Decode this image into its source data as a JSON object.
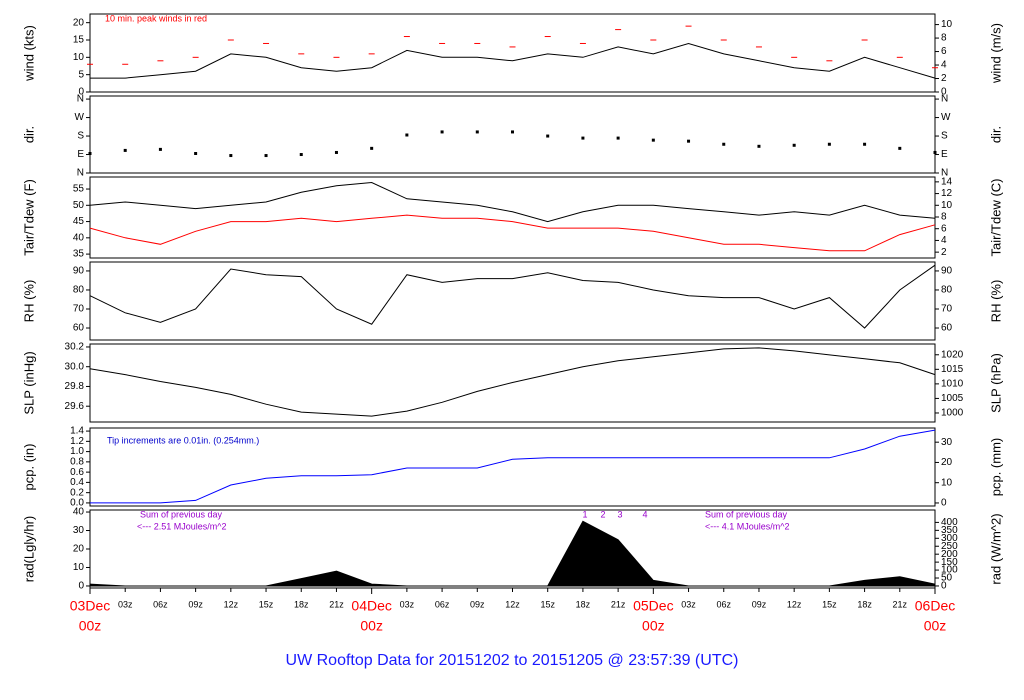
{
  "page_title": "UW Rooftop Data for 20151202  to  20151205 @ 23:57:39  (UTC)",
  "chart_data": [
    {
      "type": "line",
      "ylabel": "wind (kts)",
      "y2label": "wind (m/s)",
      "annotations": [
        "10 min. peak winds in red"
      ],
      "x": [
        0,
        3,
        6,
        9,
        12,
        15,
        18,
        21,
        24,
        27,
        30,
        33,
        36,
        39,
        42,
        45,
        48,
        51,
        54,
        57,
        60,
        63,
        66,
        69,
        72
      ],
      "ylim": [
        0,
        22.5
      ],
      "yticks": [
        0,
        5,
        10,
        15,
        20
      ],
      "y2lim": [
        0,
        11.57
      ],
      "y2ticks": [
        0,
        2,
        4,
        6,
        8,
        10
      ],
      "series": [
        {
          "color": "#000000",
          "values": [
            4,
            4,
            5,
            6,
            11,
            10,
            7,
            6,
            7,
            12,
            10,
            10,
            9,
            11,
            10,
            13,
            11,
            14,
            11,
            9,
            7,
            6,
            10,
            7,
            4
          ]
        },
        {
          "color": "#ff0000",
          "marker": "dash",
          "values": [
            8,
            8,
            9,
            10,
            15,
            14,
            11,
            10,
            11,
            16,
            14,
            14,
            13,
            16,
            14,
            18,
            15,
            19,
            15,
            13,
            10,
            9,
            15,
            10,
            7
          ]
        }
      ]
    },
    {
      "type": "line",
      "ylabel": "dir.",
      "y2label": "dir.",
      "x": [
        0,
        3,
        6,
        9,
        12,
        15,
        18,
        21,
        24,
        27,
        30,
        33,
        36,
        39,
        42,
        45,
        48,
        51,
        54,
        57,
        60,
        63,
        66,
        69,
        72
      ],
      "ylim": [
        0,
        375
      ],
      "yticks": [
        {
          "value": 0,
          "label": "N"
        },
        {
          "value": 90,
          "label": "E"
        },
        {
          "value": 180,
          "label": "S"
        },
        {
          "value": 270,
          "label": "W"
        },
        {
          "value": 360,
          "label": "N"
        }
      ],
      "y2lim": [
        0,
        375
      ],
      "y2ticks": [
        {
          "value": 0,
          "label": "N"
        },
        {
          "value": 90,
          "label": "E"
        },
        {
          "value": 180,
          "label": "S"
        },
        {
          "value": 270,
          "label": "W"
        },
        {
          "value": 360,
          "label": "N"
        }
      ],
      "series": [
        {
          "color": "#000000",
          "marker": "dots",
          "values": [
            95,
            110,
            115,
            95,
            85,
            85,
            90,
            100,
            120,
            185,
            200,
            200,
            200,
            180,
            170,
            170,
            160,
            155,
            140,
            130,
            135,
            140,
            140,
            120,
            100
          ]
        }
      ]
    },
    {
      "type": "line",
      "ylabel": "Tair/Tdew (F)",
      "y2label": "Tair/Tdew (C)",
      "x": [
        0,
        3,
        6,
        9,
        12,
        15,
        18,
        21,
        24,
        27,
        30,
        33,
        36,
        39,
        42,
        45,
        48,
        51,
        54,
        57,
        60,
        63,
        66,
        69,
        72
      ],
      "ylim": [
        33.8,
        58.7
      ],
      "yticks": [
        35,
        40,
        45,
        50,
        55
      ],
      "y2lim": [
        1.0,
        14.83
      ],
      "y2ticks": [
        2,
        4,
        6,
        8,
        10,
        12,
        14
      ],
      "series": [
        {
          "color": "#000000",
          "values": [
            50,
            51,
            50,
            49,
            50,
            51,
            54,
            56,
            57,
            52,
            51,
            50,
            48,
            45,
            48,
            50,
            50,
            49,
            48,
            47,
            48,
            47,
            50,
            47,
            46
          ]
        },
        {
          "color": "#ff0000",
          "values": [
            43,
            40,
            38,
            42,
            45,
            45,
            46,
            45,
            46,
            47,
            46,
            46,
            45,
            43,
            43,
            43,
            42,
            40,
            38,
            38,
            37,
            36,
            36,
            41,
            44
          ]
        }
      ]
    },
    {
      "type": "line",
      "ylabel": "RH (%)",
      "y2label": "RH (%)",
      "x": [
        0,
        3,
        6,
        9,
        12,
        15,
        18,
        21,
        24,
        27,
        30,
        33,
        36,
        39,
        42,
        45,
        48,
        51,
        54,
        57,
        60,
        63,
        66,
        69,
        72
      ],
      "ylim": [
        53.7,
        94.7
      ],
      "yticks": [
        60,
        70,
        80,
        90
      ],
      "y2lim": [
        53.7,
        94.7
      ],
      "y2ticks": [
        60,
        70,
        80,
        90
      ],
      "series": [
        {
          "color": "#000000",
          "values": [
            77,
            68,
            63,
            70,
            91,
            88,
            87,
            70,
            62,
            88,
            84,
            86,
            86,
            89,
            85,
            84,
            80,
            77,
            76,
            76,
            70,
            76,
            60,
            80,
            93
          ]
        }
      ]
    },
    {
      "type": "line",
      "ylabel": "SLP (inHg)",
      "y2label": "SLP (hPa)",
      "x": [
        0,
        3,
        6,
        9,
        12,
        15,
        18,
        21,
        24,
        27,
        30,
        33,
        36,
        39,
        42,
        45,
        48,
        51,
        54,
        57,
        60,
        63,
        66,
        69,
        72
      ],
      "ylim": [
        29.44,
        30.23
      ],
      "yticks": [
        29.6,
        29.8,
        {
          "value": 30,
          "label": "30.0"
        },
        30.2
      ],
      "y2lim": [
        996.9,
        1023.7
      ],
      "y2ticks": [
        1000,
        1005,
        1010,
        1015,
        1020
      ],
      "series": [
        {
          "color": "#000000",
          "values": [
            29.98,
            29.92,
            29.85,
            29.79,
            29.72,
            29.62,
            29.54,
            29.52,
            29.5,
            29.55,
            29.64,
            29.75,
            29.84,
            29.92,
            30,
            30.06,
            30.1,
            30.14,
            30.18,
            30.19,
            30.16,
            30.12,
            30.08,
            30.04,
            29.92
          ]
        }
      ]
    },
    {
      "type": "line",
      "ylabel": "pcp. (in)",
      "y2label": "pcp. (mm)",
      "annotations": [
        "Tip increments are 0.01in. (0.254mm.)"
      ],
      "x": [
        0,
        3,
        6,
        9,
        12,
        15,
        18,
        21,
        24,
        27,
        30,
        33,
        36,
        39,
        42,
        45,
        48,
        51,
        54,
        57,
        60,
        63,
        66,
        69,
        72
      ],
      "ylim": [
        -0.06,
        1.46
      ],
      "yticks": [
        {
          "value": 0,
          "label": "0.0"
        },
        0.2,
        0.4,
        0.6,
        0.8,
        {
          "value": 1,
          "label": "1.0"
        },
        1.2,
        1.4
      ],
      "y2lim": [
        -1.5,
        37.0
      ],
      "y2ticks": [
        0,
        10,
        20,
        30
      ],
      "series": [
        {
          "color": "#0000ff",
          "values": [
            0,
            0,
            0,
            0.05,
            0.35,
            0.48,
            0.53,
            0.53,
            0.55,
            0.68,
            0.68,
            0.68,
            0.85,
            0.88,
            0.88,
            0.88,
            0.88,
            0.88,
            0.88,
            0.88,
            0.88,
            0.88,
            1.05,
            1.3,
            1.42
          ]
        }
      ]
    },
    {
      "type": "line",
      "ylabel": "rad(Lgly/hr)",
      "y2label": "rad (W/m^2)",
      "annotations": [
        "Sum of previous day",
        "<--- 2.51 MJoules/m^2",
        "Sum of previous day",
        "<--- 4.1 MJoules/m^2"
      ],
      "markers": [
        "1",
        "2",
        "3",
        "4"
      ],
      "x": [
        0,
        3,
        6,
        9,
        12,
        15,
        18,
        21,
        24,
        27,
        30,
        33,
        36,
        39,
        42,
        45,
        48,
        51,
        54,
        57,
        60,
        63,
        66,
        69,
        72
      ],
      "ylim": [
        -1.1,
        41.1
      ],
      "yticks": [
        0,
        10,
        20,
        30,
        40
      ],
      "y2lim": [
        -12.8,
        478
      ],
      "y2ticks": [
        0,
        50,
        100,
        150,
        200,
        250,
        300,
        350,
        400
      ],
      "xlim": [
        0,
        72
      ],
      "xticks": [
        {
          "value": 3,
          "label": "03z"
        },
        {
          "value": 6,
          "label": "06z"
        },
        {
          "value": 9,
          "label": "09z"
        },
        {
          "value": 12,
          "label": "12z"
        },
        {
          "value": 15,
          "label": "15z"
        },
        {
          "value": 18,
          "label": "18z"
        },
        {
          "value": 21,
          "label": "21z"
        },
        {
          "value": 27,
          "label": "03z"
        },
        {
          "value": 30,
          "label": "06z"
        },
        {
          "value": 33,
          "label": "09z"
        },
        {
          "value": 36,
          "label": "12z"
        },
        {
          "value": 39,
          "label": "15z"
        },
        {
          "value": 42,
          "label": "18z"
        },
        {
          "value": 45,
          "label": "21z"
        },
        {
          "value": 51,
          "label": "03z"
        },
        {
          "value": 54,
          "label": "06z"
        },
        {
          "value": 57,
          "label": "09z"
        },
        {
          "value": 60,
          "label": "12z"
        },
        {
          "value": 63,
          "label": "15z"
        },
        {
          "value": 66,
          "label": "18z"
        },
        {
          "value": 69,
          "label": "21z"
        }
      ],
      "day_ticks": [
        {
          "value": 0,
          "label": "03Dec",
          "hour": "00z"
        },
        {
          "value": 24,
          "label": "04Dec",
          "hour": "00z"
        },
        {
          "value": 48,
          "label": "05Dec",
          "hour": "00z"
        },
        {
          "value": 72,
          "label": "06Dec",
          "hour": "00z"
        }
      ],
      "series": [
        {
          "color": "#000000",
          "fill": true,
          "values": [
            1,
            0,
            0,
            0,
            0,
            0,
            4,
            8,
            1,
            0,
            0,
            0,
            0,
            0,
            35,
            25,
            3,
            0,
            0,
            0,
            0,
            0,
            3,
            5,
            1
          ]
        }
      ]
    }
  ]
}
